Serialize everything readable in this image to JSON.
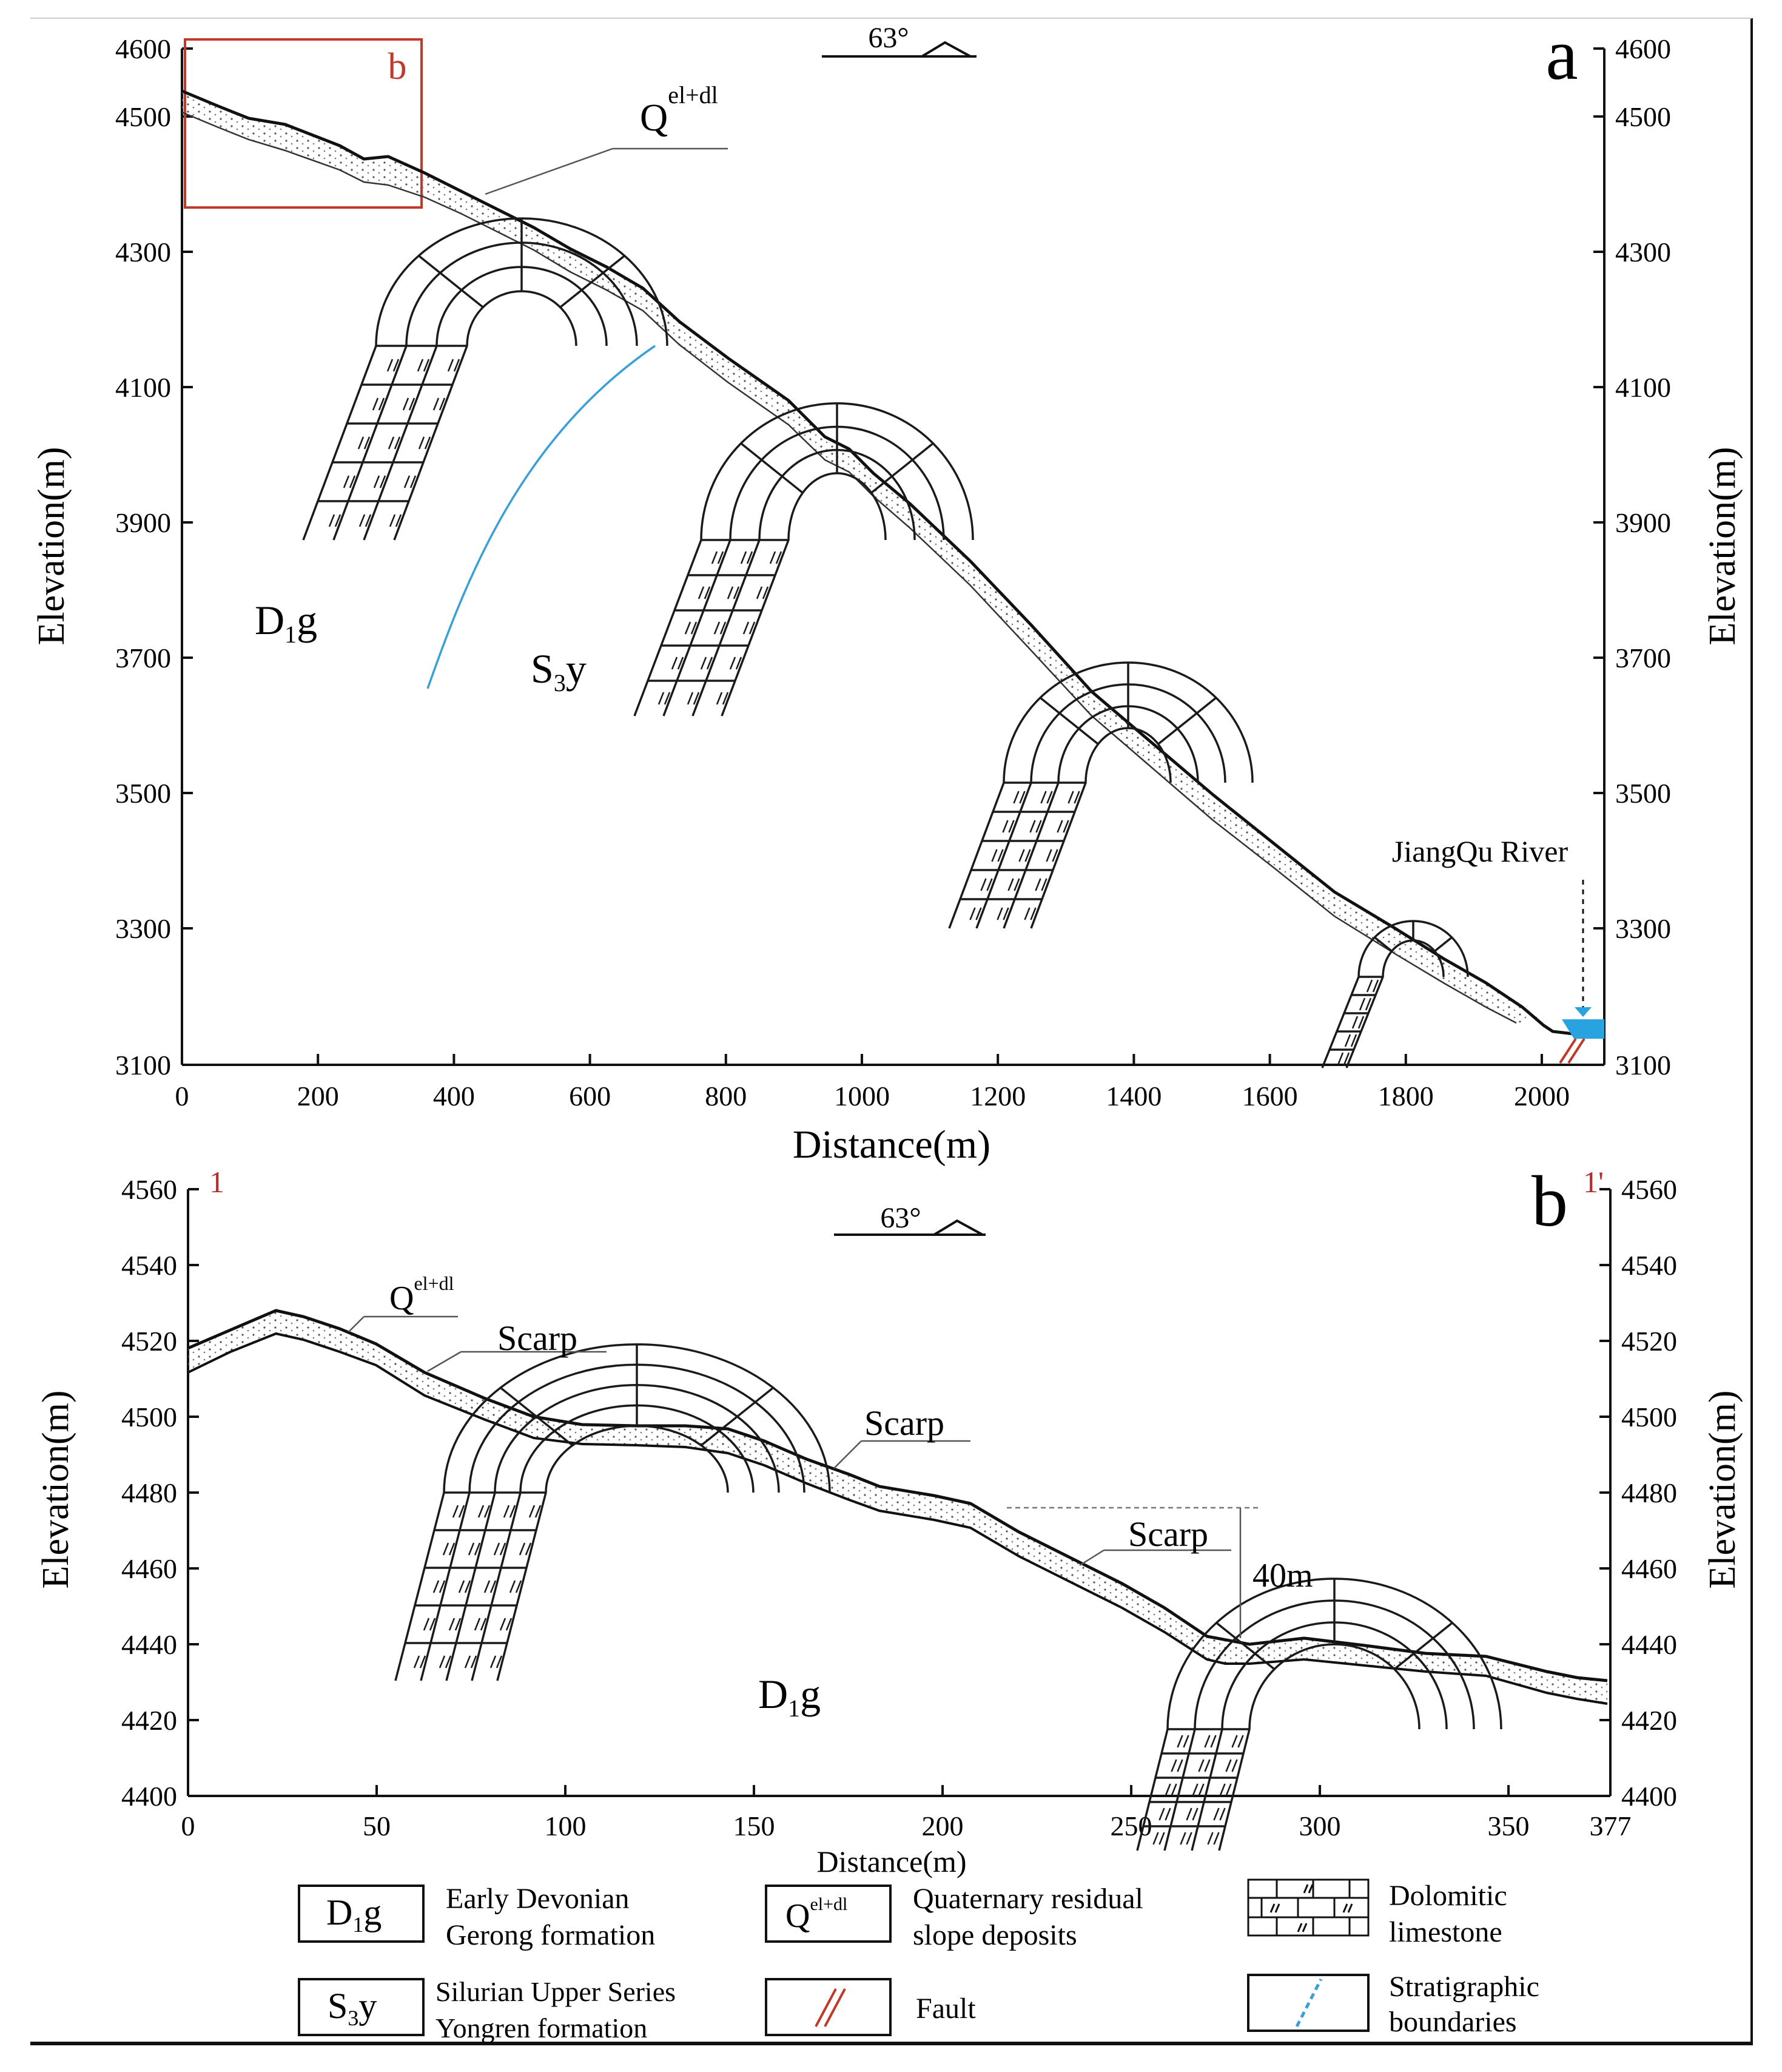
{
  "panel_a": {
    "label": "a",
    "dip_label": "63°",
    "q_label_main": "Q",
    "q_label_sup": "el+dl",
    "unit_dg_main": "D",
    "unit_dg_sub": "1",
    "unit_dg_end": "g",
    "unit_sy_main": "S",
    "unit_sy_sub": "3",
    "unit_sy_end": "y",
    "river_label": "JiangQu  River",
    "inset_label": "b",
    "x_axis_label": "Distance(m)",
    "y_axis_label_left": "Elevation(m)",
    "y_axis_label_right": "Elevation(m)",
    "x_ticks": [
      "0",
      "200",
      "400",
      "600",
      "800",
      "1000",
      "1200",
      "1400",
      "1600",
      "1800",
      "2000"
    ],
    "y_ticks": [
      "4600",
      "4500",
      "4300",
      "4100",
      "3900",
      "3700",
      "3500",
      "3300",
      "3100"
    ]
  },
  "panel_b": {
    "label": "b",
    "section_start": "1",
    "section_end": "1'",
    "dip_label": "63°",
    "q_label_main": "Q",
    "q_label_sup": "el+dl",
    "scarp_label": "Scarp",
    "unit_dg_main": "D",
    "unit_dg_sub": "1",
    "unit_dg_end": "g",
    "height_label": "40m",
    "x_axis_label": "Distance(m)",
    "y_axis_label_left": "Elevation(m)",
    "y_axis_label_right": "Elevation(m)",
    "x_ticks": [
      "0",
      "50",
      "100",
      "150",
      "200",
      "250",
      "300",
      "350",
      "377"
    ],
    "y_ticks": [
      "4560",
      "4540",
      "4520",
      "4500",
      "4480",
      "4460",
      "4440",
      "4420",
      "4400"
    ]
  },
  "legend": {
    "dg_code_main": "D",
    "dg_code_sub": "1",
    "dg_code_end": "g",
    "dg_line1": "Early Devonian",
    "dg_line2": "Gerong formation",
    "q_code_main": "Q",
    "q_code_sup": "el+dl",
    "q_line1": "Quaternary residual",
    "q_line2": "slope deposits",
    "dolo_line1": "Dolomitic",
    "dolo_line2": "limestone",
    "sy_code_main": "S",
    "sy_code_sub": "3",
    "sy_code_end": "y",
    "sy_line1": "Silurian Upper Series",
    "sy_line2": "Yongren formation",
    "fault_label": "Fault",
    "strat_line1": "Stratigraphic",
    "strat_line2": "boundaries"
  },
  "colors": {
    "ink": "#1a1a1a",
    "inset_box": "#c0392b",
    "boundary": "#3a9fd6",
    "water": "#29a3e0",
    "fault": "#c0392b",
    "section_label": "#b03030"
  }
}
